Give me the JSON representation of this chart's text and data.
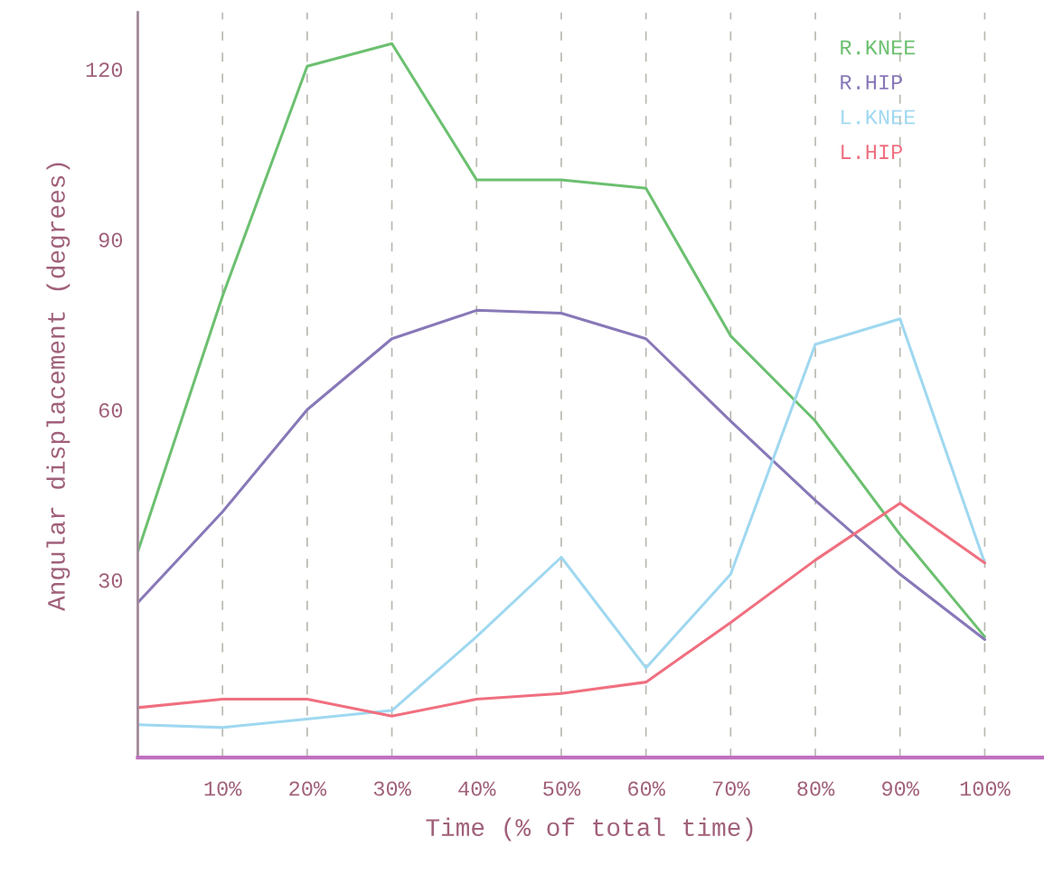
{
  "chart_data": {
    "type": "line",
    "xlabel": "Time (% of total time)",
    "ylabel": "Angular displacement (degrees)",
    "x": [
      0,
      10,
      20,
      30,
      40,
      50,
      60,
      70,
      80,
      90,
      100
    ],
    "series": [
      {
        "name": "R.KNEE",
        "color": "#6cc070",
        "values": [
          35,
          80,
          120.5,
          124.5,
          100.5,
          100.5,
          99,
          73,
          58,
          38,
          20
        ]
      },
      {
        "name": "R.HIP",
        "color": "#8878b8",
        "values": [
          26,
          42,
          60,
          72.5,
          77.5,
          77,
          72.5,
          58,
          44,
          31,
          19.5
        ]
      },
      {
        "name": "L.KNEE",
        "color": "#9fd8f0",
        "values": [
          4.5,
          4,
          5.5,
          7,
          20,
          34,
          14.5,
          31,
          71.5,
          76,
          33
        ]
      },
      {
        "name": "L.HIP",
        "color": "#f07080",
        "values": [
          7.5,
          9,
          9,
          6,
          9,
          10,
          12,
          22.5,
          33.5,
          43.5,
          33
        ]
      }
    ],
    "xlim": [
      0,
      107
    ],
    "ylim": [
      -1.3,
      130
    ],
    "xticks": [
      {
        "value": 10,
        "label": "10%"
      },
      {
        "value": 20,
        "label": "20%"
      },
      {
        "value": 30,
        "label": "30%"
      },
      {
        "value": 40,
        "label": "40%"
      },
      {
        "value": 50,
        "label": "50%"
      },
      {
        "value": 60,
        "label": "60%"
      },
      {
        "value": 70,
        "label": "70%"
      },
      {
        "value": 80,
        "label": "80%"
      },
      {
        "value": 90,
        "label": "90%"
      },
      {
        "value": 100,
        "label": "100%"
      }
    ],
    "yticks": [
      30,
      60,
      90,
      120
    ],
    "grid": "x",
    "legend": "top right",
    "line_style": "solid",
    "marker": "none"
  }
}
